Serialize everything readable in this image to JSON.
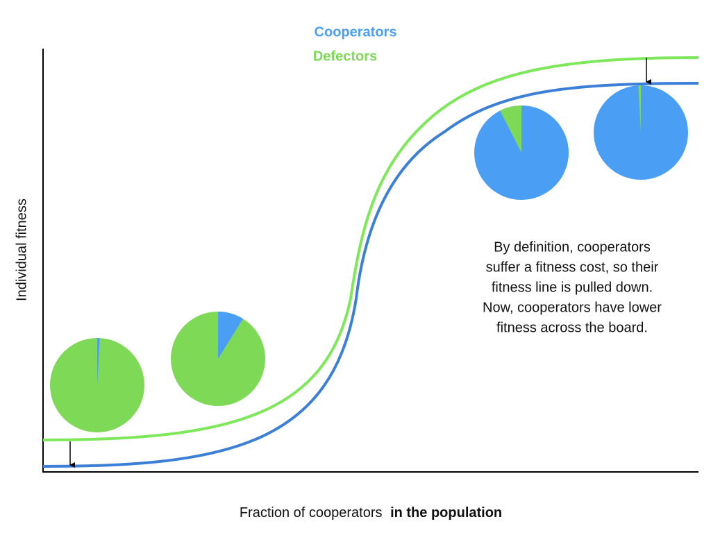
{
  "legend": {
    "items": [
      "Cooperators",
      "Defectors"
    ]
  },
  "axes": {
    "y_label": "Individual fitness",
    "x_label": {
      "plain": "Fraction of cooperators",
      "bold": "in the population"
    }
  },
  "annotation": {
    "lines": [
      "By definition, cooperators",
      "suffer a fitness cost, so their",
      "fitness line is pulled down.",
      "Now, cooperators have lower",
      "fitness across the board."
    ]
  }
}
